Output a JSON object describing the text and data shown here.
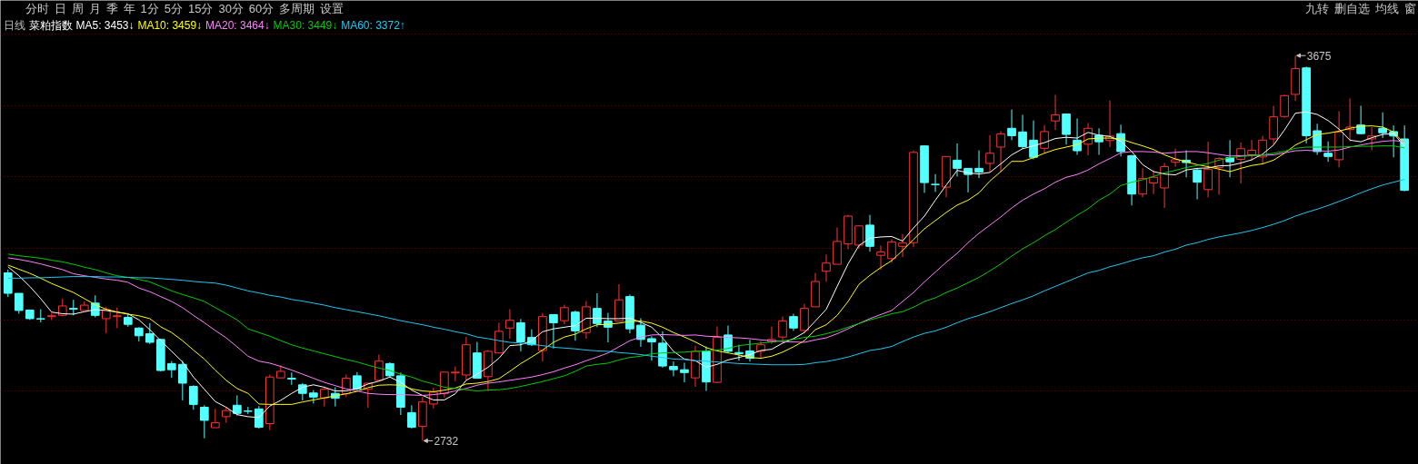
{
  "chart_data": {
    "type": "candlestick",
    "title": "菜粕指数",
    "subtitle": "日线",
    "annotations": [
      "分时 日 周 月 季 年 1分 5分 15分 30分 60分 多周期 设置",
      "九转 删自选 均线 窗",
      "3675",
      "2732"
    ],
    "categories": [
      null,
      null,
      null,
      null,
      null,
      null,
      null,
      null,
      null,
      null,
      null,
      null,
      null,
      null,
      null,
      null,
      null,
      null,
      null,
      null,
      null,
      null,
      null,
      null,
      null,
      null,
      null,
      null,
      null,
      null,
      null,
      null,
      null,
      null,
      null,
      null,
      null,
      null,
      null,
      null,
      null,
      null,
      null,
      null,
      null,
      null,
      null,
      null,
      null,
      null,
      null,
      null,
      null,
      null,
      null,
      null,
      null,
      null,
      null,
      null,
      null,
      null,
      null,
      null,
      null,
      null,
      null,
      null,
      null,
      null,
      null,
      null,
      null,
      null,
      null,
      null,
      null,
      null,
      null,
      null,
      null,
      null,
      null,
      null,
      null,
      null,
      null,
      null,
      null,
      null,
      null,
      null,
      null,
      null,
      null,
      null,
      null,
      null,
      null,
      null,
      null,
      null,
      null,
      null,
      null,
      null,
      null,
      null,
      null,
      null,
      null,
      null,
      null,
      null,
      null,
      null,
      null,
      null,
      null,
      null,
      null,
      null,
      null,
      null,
      null,
      null,
      null,
      null,
      null
    ],
    "ohlc": [
      [
        3143,
        3151,
        3084,
        3093
      ],
      [
        3093,
        3093,
        3043,
        3051
      ],
      [
        3052,
        3052,
        3028,
        3031
      ],
      [
        3031,
        3054,
        3022,
        3030
      ],
      [
        3036,
        3045,
        3028,
        3038
      ],
      [
        3039,
        3080,
        3037,
        3062
      ],
      [
        3056,
        3077,
        3039,
        3054
      ],
      [
        3051,
        3073,
        3051,
        3064
      ],
      [
        3069,
        3088,
        3034,
        3039
      ],
      [
        3031,
        3060,
        2995,
        3053
      ],
      [
        3036,
        3058,
        3008,
        3038
      ],
      [
        3034,
        3042,
        3011,
        3017
      ],
      [
        3008,
        3010,
        2975,
        2989
      ],
      [
        2994,
        3020,
        2969,
        2973
      ],
      [
        2980,
        2982,
        2902,
        2904
      ],
      [
        2921,
        2927,
        2886,
        2906
      ],
      [
        2919,
        2928,
        2831,
        2873
      ],
      [
        2865,
        2868,
        2808,
        2821
      ],
      [
        2814,
        2819,
        2738,
        2782
      ],
      [
        2764,
        2810,
        2764,
        2776
      ],
      [
        2791,
        2814,
        2776,
        2806
      ],
      [
        2819,
        2843,
        2794,
        2799
      ],
      [
        2805,
        2815,
        2797,
        2804
      ],
      [
        2810,
        2817,
        2762,
        2765
      ],
      [
        2774,
        2894,
        2758,
        2888
      ],
      [
        2886,
        2917,
        2886,
        2902
      ],
      [
        2885,
        2899,
        2869,
        2883
      ],
      [
        2869,
        2873,
        2831,
        2848
      ],
      [
        2849,
        2856,
        2823,
        2839
      ],
      [
        2837,
        2865,
        2816,
        2858
      ],
      [
        2848,
        2863,
        2816,
        2836
      ],
      [
        2847,
        2894,
        2839,
        2885
      ],
      [
        2891,
        2900,
        2856,
        2859
      ],
      [
        2858,
        2873,
        2813,
        2873
      ],
      [
        2880,
        2943,
        2878,
        2927
      ],
      [
        2921,
        2924,
        2888,
        2891
      ],
      [
        2891,
        2899,
        2795,
        2814
      ],
      [
        2801,
        2819,
        2762,
        2765
      ],
      [
        2767,
        2839,
        2732,
        2827
      ],
      [
        2822,
        2862,
        2811,
        2851
      ],
      [
        2848,
        2900,
        2838,
        2900
      ],
      [
        2898,
        2914,
        2878,
        2900
      ],
      [
        2893,
        2986,
        2880,
        2967
      ],
      [
        2947,
        2974,
        2884,
        2885
      ],
      [
        2889,
        2954,
        2854,
        2951
      ],
      [
        2947,
        3021,
        2947,
        3000
      ],
      [
        3008,
        3054,
        2982,
        3027
      ],
      [
        3021,
        3030,
        2951,
        2974
      ],
      [
        2985,
        3005,
        2964,
        2967
      ],
      [
        2953,
        3045,
        2926,
        3036
      ],
      [
        3041,
        3041,
        2958,
        3021
      ],
      [
        3026,
        3065,
        3017,
        3058
      ],
      [
        3047,
        3051,
        2977,
        3001
      ],
      [
        2997,
        3074,
        2982,
        3060
      ],
      [
        3056,
        3093,
        3010,
        3019
      ],
      [
        3025,
        3045,
        2973,
        3010
      ],
      [
        3025,
        3115,
        3025,
        3077
      ],
      [
        3085,
        3090,
        2995,
        3006
      ],
      [
        3015,
        3032,
        2962,
        2980
      ],
      [
        2982,
        2988,
        2928,
        2974
      ],
      [
        2971,
        3000,
        2911,
        2915
      ],
      [
        2914,
        2926,
        2890,
        2906
      ],
      [
        2906,
        2923,
        2875,
        2899
      ],
      [
        2886,
        2965,
        2864,
        2951
      ],
      [
        2952,
        2963,
        2854,
        2876
      ],
      [
        2875,
        3012,
        2873,
        2985
      ],
      [
        2991,
        3014,
        2948,
        2951
      ],
      [
        2948,
        2967,
        2928,
        2945
      ],
      [
        2952,
        2979,
        2926,
        2934
      ],
      [
        2951,
        2976,
        2932,
        2967
      ],
      [
        2974,
        3012,
        2969,
        2980
      ],
      [
        2986,
        3036,
        2974,
        3025
      ],
      [
        3036,
        3043,
        3001,
        3008
      ],
      [
        3002,
        3067,
        2995,
        3056
      ],
      [
        3060,
        3143,
        3060,
        3122
      ],
      [
        3147,
        3188,
        3121,
        3167
      ],
      [
        3164,
        3254,
        3164,
        3220
      ],
      [
        3214,
        3285,
        3201,
        3282
      ],
      [
        3211,
        3260,
        3202,
        3258
      ],
      [
        3260,
        3285,
        3195,
        3208
      ],
      [
        3186,
        3210,
        3151,
        3194
      ],
      [
        3178,
        3225,
        3169,
        3219
      ],
      [
        3208,
        3238,
        3182,
        3216
      ],
      [
        3217,
        3443,
        3206,
        3438
      ],
      [
        3454,
        3454,
        3339,
        3364
      ],
      [
        3360,
        3385,
        3341,
        3359
      ],
      [
        3353,
        3428,
        3328,
        3428
      ],
      [
        3419,
        3460,
        3379,
        3399
      ],
      [
        3399,
        3399,
        3340,
        3384
      ],
      [
        3399,
        3443,
        3375,
        3390
      ],
      [
        3411,
        3480,
        3390,
        3436
      ],
      [
        3451,
        3490,
        3390,
        3483
      ],
      [
        3497,
        3543,
        3468,
        3479
      ],
      [
        3488,
        3530,
        3447,
        3452
      ],
      [
        3468,
        3516,
        3421,
        3426
      ],
      [
        3448,
        3505,
        3436,
        3489
      ],
      [
        3515,
        3579,
        3493,
        3530
      ],
      [
        3532,
        3532,
        3457,
        3482
      ],
      [
        3468,
        3521,
        3432,
        3442
      ],
      [
        3458,
        3510,
        3431,
        3497
      ],
      [
        3480,
        3497,
        3432,
        3464
      ],
      [
        3467,
        3565,
        3451,
        3478
      ],
      [
        3484,
        3506,
        3428,
        3440
      ],
      [
        3430,
        3432,
        3308,
        3336
      ],
      [
        3336,
        3399,
        3328,
        3374
      ],
      [
        3363,
        3394,
        3336,
        3377
      ],
      [
        3351,
        3412,
        3302,
        3403
      ],
      [
        3414,
        3447,
        3403,
        3420
      ],
      [
        3419,
        3443,
        3377,
        3413
      ],
      [
        3395,
        3399,
        3323,
        3365
      ],
      [
        3347,
        3464,
        3328,
        3397
      ],
      [
        3401,
        3426,
        3334,
        3423
      ],
      [
        3425,
        3468,
        3377,
        3415
      ],
      [
        3421,
        3462,
        3362,
        3447
      ],
      [
        3432,
        3469,
        3417,
        3443
      ],
      [
        3427,
        3479,
        3408,
        3468
      ],
      [
        3471,
        3551,
        3458,
        3525
      ],
      [
        3526,
        3579,
        3523,
        3577
      ],
      [
        3580,
        3675,
        3564,
        3643
      ],
      [
        3645,
        3648,
        3460,
        3479
      ],
      [
        3491,
        3508,
        3432,
        3440
      ],
      [
        3436,
        3465,
        3415,
        3428
      ],
      [
        3420,
        3539,
        3401,
        3488
      ],
      [
        3494,
        3570,
        3465,
        3500
      ],
      [
        3505,
        3552,
        3482,
        3484
      ],
      [
        3471,
        3500,
        3443,
        3478
      ],
      [
        3497,
        3536,
        3473,
        3486
      ],
      [
        3489,
        3504,
        3426,
        3478
      ],
      [
        3471,
        3504,
        3343,
        3345
      ]
    ],
    "colors": [
      "#54ffff",
      "#54ffff",
      "#54ffff",
      "#54ffff",
      "#ff3232",
      "#ff3232",
      "#54ffff",
      "#ff3232",
      "#54ffff",
      "#ff3232",
      "#ff3232",
      "#54ffff",
      "#54ffff",
      "#54ffff",
      "#54ffff",
      "#54ffff",
      "#54ffff",
      "#54ffff",
      "#54ffff",
      "#ff3232",
      "#ff3232",
      "#54ffff",
      "#54ffff",
      "#54ffff",
      "#ff3232",
      "#ff3232",
      "#54ffff",
      "#54ffff",
      "#54ffff",
      "#ff3232",
      "#54ffff",
      "#ff3232",
      "#54ffff",
      "#ff3232",
      "#ff3232",
      "#54ffff",
      "#54ffff",
      "#54ffff",
      "#ff3232",
      "#ff3232",
      "#ff3232",
      "#ff3232",
      "#ff3232",
      "#54ffff",
      "#ff3232",
      "#ff3232",
      "#ff3232",
      "#54ffff",
      "#54ffff",
      "#ff3232",
      "#54ffff",
      "#ff3232",
      "#54ffff",
      "#ff3232",
      "#54ffff",
      "#54ffff",
      "#ff3232",
      "#54ffff",
      "#54ffff",
      "#54ffff",
      "#54ffff",
      "#54ffff",
      "#54ffff",
      "#ff3232",
      "#54ffff",
      "#ff3232",
      "#54ffff",
      "#54ffff",
      "#54ffff",
      "#ff3232",
      "#ff3232",
      "#ff3232",
      "#54ffff",
      "#ff3232",
      "#ff3232",
      "#ff3232",
      "#ff3232",
      "#ff3232",
      "#ff3232",
      "#54ffff",
      "#ff3232",
      "#ff3232",
      "#ff3232",
      "#ff3232",
      "#54ffff",
      "#54ffff",
      "#ff3232",
      "#54ffff",
      "#54ffff",
      "#54ffff",
      "#ff3232",
      "#ff3232",
      "#54ffff",
      "#54ffff",
      "#54ffff",
      "#ff3232",
      "#ff3232",
      "#54ffff",
      "#54ffff",
      "#ff3232",
      "#54ffff",
      "#ff3232",
      "#54ffff",
      "#54ffff",
      "#ff3232",
      "#ff3232",
      "#ff3232",
      "#ff3232",
      "#54ffff",
      "#54ffff",
      "#ff3232",
      "#ff3232",
      "#54ffff",
      "#ff3232",
      "#ff3232",
      "#ff3232",
      "#ff3232",
      "#ff3232",
      "#ff3232",
      "#54ffff",
      "#54ffff",
      "#54ffff",
      "#ff3232",
      "#ff3232",
      "#54ffff",
      "#ff3232",
      "#54ffff",
      "#54ffff",
      "#54ffff"
    ],
    "series": [
      {
        "type": "line",
        "name": "MA5: 3453↓",
        "color": "#ffffff",
        "values": [
          3158,
          3136,
          3110,
          3080,
          3047,
          3043,
          3042,
          3048,
          3053,
          3051,
          3047,
          3043,
          3028,
          3004,
          2977,
          2951,
          2925,
          2888,
          2858,
          2828,
          2814,
          2796,
          2791,
          2789,
          2817,
          2831,
          2848,
          2863,
          2869,
          2863,
          2854,
          2854,
          2860,
          2871,
          2878,
          2888,
          2875,
          2856,
          2843,
          2832,
          2832,
          2847,
          2880,
          2895,
          2912,
          2934,
          2965,
          2967,
          2977,
          2999,
          3006,
          3010,
          3014,
          3032,
          3032,
          3031,
          3031,
          3032,
          3022,
          3010,
          2984,
          2951,
          2932,
          2928,
          2912,
          2919,
          2930,
          2936,
          2943,
          2953,
          2956,
          2971,
          2982,
          2997,
          3025,
          3054,
          3110,
          3165,
          3210,
          3228,
          3231,
          3232,
          3221,
          3253,
          3282,
          3321,
          3358,
          3394,
          3388,
          3385,
          3389,
          3410,
          3432,
          3447,
          3454,
          3462,
          3472,
          3475,
          3473,
          3487,
          3480,
          3477,
          3465,
          3440,
          3408,
          3391,
          3385,
          3383,
          3395,
          3399,
          3400,
          3405,
          3406,
          3412,
          3420,
          3434,
          3456,
          3493,
          3534,
          3537,
          3531,
          3516,
          3495,
          3468,
          3464,
          3474,
          3482,
          3484,
          3453
        ]
      },
      {
        "type": "line",
        "name": "MA10: 3459↓",
        "color": "#ffff00",
        "values": [
          3162,
          3152,
          3142,
          3130,
          3117,
          3106,
          3095,
          3080,
          3065,
          3054,
          3047,
          3042,
          3038,
          3031,
          3011,
          2997,
          2977,
          2954,
          2932,
          2905,
          2880,
          2860,
          2848,
          2822,
          2821,
          2821,
          2821,
          2827,
          2832,
          2837,
          2842,
          2847,
          2853,
          2862,
          2868,
          2869,
          2868,
          2859,
          2854,
          2852,
          2856,
          2861,
          2871,
          2873,
          2877,
          2884,
          2902,
          2921,
          2937,
          2954,
          2973,
          2986,
          2993,
          3006,
          3016,
          3017,
          3020,
          3024,
          3025,
          3020,
          3010,
          2997,
          2986,
          2974,
          2960,
          2952,
          2947,
          2942,
          2936,
          2934,
          2939,
          2949,
          2962,
          2977,
          3004,
          3016,
          3039,
          3073,
          3115,
          3137,
          3156,
          3173,
          3198,
          3225,
          3251,
          3271,
          3291,
          3309,
          3321,
          3339,
          3368,
          3391,
          3416,
          3416,
          3425,
          3436,
          3445,
          3451,
          3457,
          3471,
          3473,
          3473,
          3471,
          3462,
          3454,
          3445,
          3432,
          3422,
          3415,
          3408,
          3403,
          3397,
          3391,
          3399,
          3406,
          3410,
          3419,
          3436,
          3456,
          3469,
          3482,
          3485,
          3490,
          3497,
          3502,
          3503,
          3500,
          3488,
          3459
        ]
      },
      {
        "type": "line",
        "name": "MA20: 3464↓",
        "color": "#ff80ff",
        "values": [
          3180,
          3176,
          3171,
          3165,
          3158,
          3151,
          3141,
          3136,
          3132,
          3128,
          3125,
          3120,
          3106,
          3097,
          3085,
          3073,
          3058,
          3039,
          3021,
          3002,
          2984,
          2962,
          2939,
          2927,
          2922,
          2914,
          2905,
          2895,
          2885,
          2875,
          2867,
          2859,
          2854,
          2848,
          2846,
          2845,
          2845,
          2844,
          2843,
          2845,
          2848,
          2854,
          2860,
          2868,
          2873,
          2876,
          2880,
          2884,
          2888,
          2894,
          2901,
          2910,
          2918,
          2928,
          2937,
          2947,
          2962,
          2977,
          2986,
          2991,
          2992,
          2991,
          2990,
          2991,
          2988,
          2987,
          2985,
          2984,
          2982,
          2979,
          2977,
          2975,
          2974,
          2973,
          2979,
          2984,
          2994,
          3006,
          3019,
          3031,
          3041,
          3051,
          3073,
          3095,
          3121,
          3145,
          3169,
          3191,
          3217,
          3240,
          3260,
          3280,
          3302,
          3321,
          3336,
          3349,
          3365,
          3377,
          3384,
          3395,
          3410,
          3423,
          3437,
          3440,
          3440,
          3439,
          3436,
          3438,
          3440,
          3440,
          3437,
          3433,
          3429,
          3430,
          3431,
          3431,
          3432,
          3437,
          3442,
          3443,
          3442,
          3441,
          3444,
          3451,
          3456,
          3461,
          3465,
          3467,
          3464
        ]
      },
      {
        "type": "line",
        "name": "MA30: 3449↓",
        "color": "#00cc00",
        "values": [
          3189,
          3185,
          3182,
          3179,
          3174,
          3170,
          3164,
          3157,
          3151,
          3143,
          3136,
          3132,
          3127,
          3121,
          3110,
          3099,
          3090,
          3082,
          3073,
          3058,
          3043,
          3028,
          3006,
          2997,
          2988,
          2977,
          2967,
          2959,
          2952,
          2945,
          2938,
          2931,
          2925,
          2917,
          2910,
          2904,
          2895,
          2888,
          2878,
          2871,
          2863,
          2860,
          2857,
          2854,
          2856,
          2857,
          2860,
          2865,
          2871,
          2877,
          2884,
          2891,
          2902,
          2915,
          2919,
          2922,
          2930,
          2936,
          2939,
          2945,
          2947,
          2948,
          2949,
          2951,
          2952,
          2954,
          2958,
          2965,
          2968,
          2971,
          2974,
          2977,
          2980,
          2985,
          2988,
          2994,
          3001,
          3010,
          3019,
          3028,
          3035,
          3043,
          3048,
          3059,
          3073,
          3082,
          3095,
          3106,
          3119,
          3132,
          3148,
          3165,
          3184,
          3202,
          3217,
          3234,
          3249,
          3267,
          3284,
          3300,
          3321,
          3336,
          3357,
          3365,
          3371,
          3379,
          3388,
          3394,
          3401,
          3406,
          3411,
          3419,
          3425,
          3428,
          3430,
          3432,
          3436,
          3441,
          3448,
          3451,
          3451,
          3451,
          3451,
          3452,
          3453,
          3453,
          3454,
          3454,
          3449
        ]
      },
      {
        "type": "line",
        "name": "MA60: 3372↑",
        "color": "#1ec8f0",
        "values": [
          3130,
          3130,
          3131,
          3131,
          3132,
          3133,
          3134,
          3134,
          3134,
          3133,
          3133,
          3132,
          3131,
          3131,
          3129,
          3127,
          3125,
          3122,
          3120,
          3118,
          3113,
          3106,
          3099,
          3094,
          3088,
          3084,
          3078,
          3074,
          3069,
          3064,
          3058,
          3053,
          3048,
          3043,
          3038,
          3032,
          3026,
          3021,
          3016,
          3010,
          3005,
          2999,
          2994,
          2986,
          2982,
          2977,
          2973,
          2971,
          2968,
          2965,
          2961,
          2959,
          2957,
          2954,
          2952,
          2951,
          2948,
          2946,
          2943,
          2939,
          2936,
          2932,
          2931,
          2928,
          2927,
          2925,
          2923,
          2921,
          2920,
          2919,
          2918,
          2918,
          2918,
          2919,
          2923,
          2926,
          2931,
          2937,
          2945,
          2953,
          2957,
          2963,
          2975,
          2986,
          2995,
          3001,
          3010,
          3021,
          3031,
          3039,
          3048,
          3058,
          3068,
          3077,
          3087,
          3099,
          3110,
          3121,
          3132,
          3143,
          3149,
          3158,
          3165,
          3173,
          3180,
          3185,
          3194,
          3201,
          3211,
          3217,
          3225,
          3231,
          3236,
          3241,
          3247,
          3254,
          3262,
          3271,
          3282,
          3291,
          3299,
          3308,
          3318,
          3328,
          3339,
          3349,
          3358,
          3365,
          3372
        ]
      }
    ],
    "ylim": [
      2674,
      3810
    ],
    "yticks": [
      {
        "value": 3728,
        "label": null
      },
      {
        "value": 3553,
        "label": null
      },
      {
        "value": 3378,
        "label": null
      },
      {
        "value": 3203,
        "label": null
      },
      {
        "value": 3028,
        "label": null
      },
      {
        "value": 2853,
        "label": null
      }
    ],
    "grid": "y",
    "tick_labels": false,
    "legend": "top left"
  }
}
